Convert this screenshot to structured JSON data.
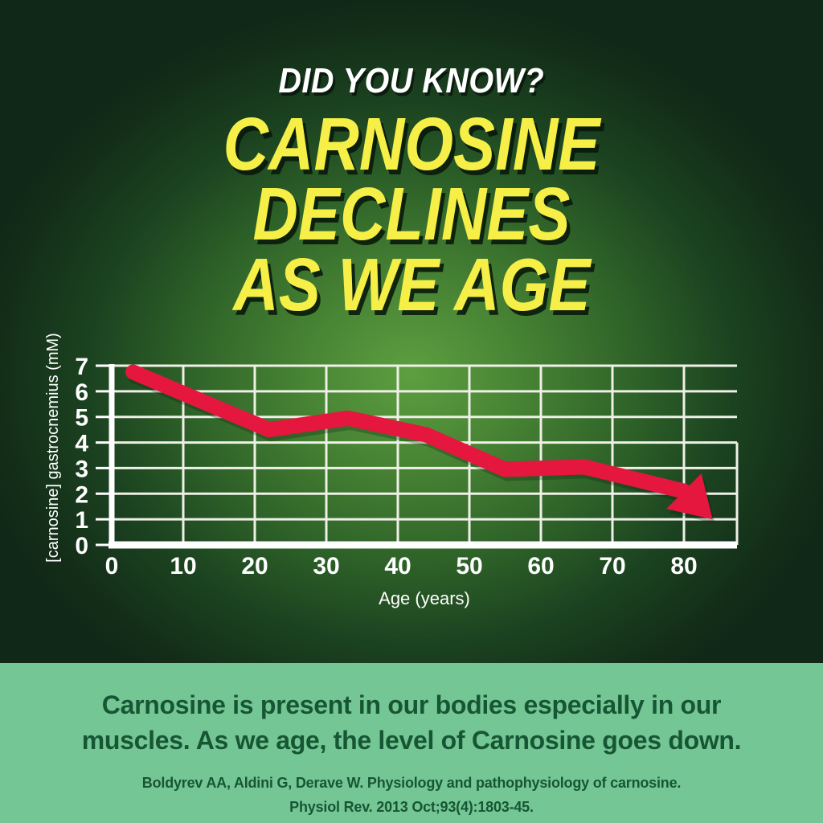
{
  "header": {
    "kicker": "DID YOU KNOW?",
    "title_line1": "CARNOSINE DECLINES",
    "title_line2": "AS WE AGE"
  },
  "chart_data": {
    "type": "line",
    "title": "",
    "xlabel": "Age (years)",
    "ylabel": "[carnosine] gastrocnemius (mM)",
    "x_ticks": [
      0,
      10,
      20,
      30,
      40,
      50,
      60,
      70,
      80
    ],
    "y_ticks": [
      0,
      1,
      2,
      3,
      4,
      5,
      6,
      7
    ],
    "xlim": [
      0,
      87.5
    ],
    "ylim": [
      0,
      7
    ],
    "grid": true,
    "legend": "none",
    "line_color": "#e5173f",
    "grid_color": "#eef0e6",
    "axis_color": "#ffffff",
    "points": [
      [
        3,
        6.75
      ],
      [
        22,
        4.5
      ],
      [
        33,
        4.95
      ],
      [
        44,
        4.3
      ],
      [
        55,
        2.95
      ],
      [
        66,
        3.05
      ],
      [
        80,
        2.1
      ]
    ],
    "arrow_tip": [
      84,
      1.0
    ]
  },
  "panel": {
    "body_lines": [
      "Carnosine is present in our bodies especially in our",
      "muscles. As we age, the level of Carnosine goes down."
    ],
    "citation_lines": [
      "Boldyrev AA, Aldini G, Derave W. Physiology and pathophysiology of carnosine.",
      "Physiol Rev. 2013 Oct;93(4):1803-45."
    ]
  },
  "colors": {
    "background_dark": "#102817",
    "glow_green": "#5d9f40",
    "title_yellow": "#f6ef47",
    "line_red": "#e5173f",
    "panel_green": "#74c794",
    "panel_text": "#175634",
    "grid_white": "#eef0e6"
  }
}
